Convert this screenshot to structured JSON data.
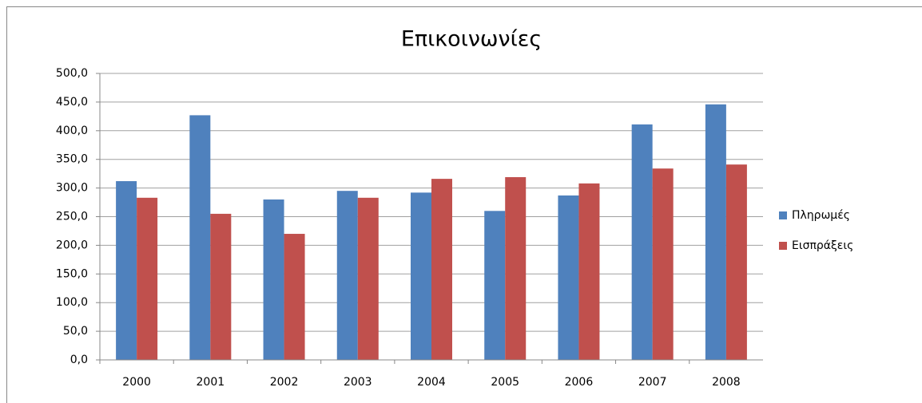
{
  "chart_data": {
    "type": "bar",
    "title": "Επικοινωνίες",
    "categories": [
      "2000",
      "2001",
      "2002",
      "2003",
      "2004",
      "2005",
      "2006",
      "2007",
      "2008"
    ],
    "series": [
      {
        "name": "Πληρωμές",
        "color": "#4f81bd",
        "values": [
          312,
          427,
          280,
          295,
          292,
          260,
          287,
          411,
          446
        ]
      },
      {
        "name": "Εισπράξεις",
        "color": "#c0504d",
        "values": [
          283,
          255,
          220,
          283,
          316,
          319,
          308,
          334,
          341
        ]
      }
    ],
    "ylim": [
      0,
      500
    ],
    "yticks": [
      {
        "value": 0,
        "label": "0,0"
      },
      {
        "value": 50,
        "label": "50,0"
      },
      {
        "value": 100,
        "label": "100,0"
      },
      {
        "value": 150,
        "label": "150,0"
      },
      {
        "value": 200,
        "label": "200,0"
      },
      {
        "value": 250,
        "label": "250,0"
      },
      {
        "value": 300,
        "label": "300,0"
      },
      {
        "value": 350,
        "label": "350,0"
      },
      {
        "value": 400,
        "label": "400,0"
      },
      {
        "value": 450,
        "label": "450,0"
      },
      {
        "value": 500,
        "label": "500,0"
      }
    ],
    "grid": true,
    "legend": "right"
  }
}
